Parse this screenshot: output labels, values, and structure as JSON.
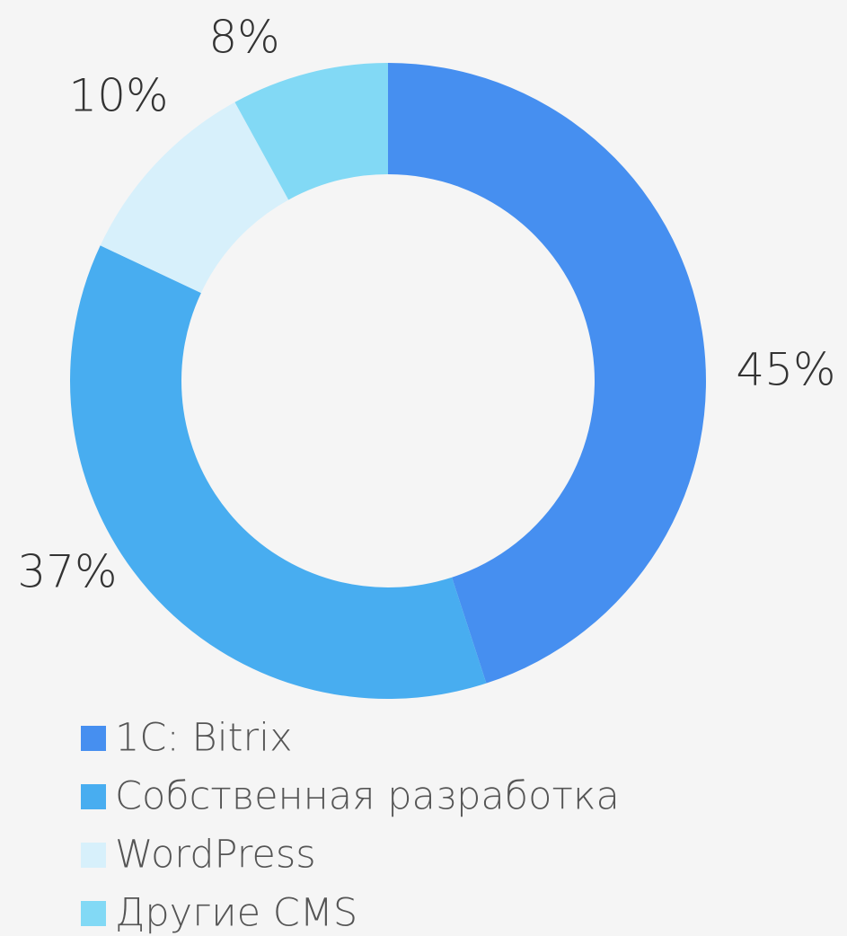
{
  "chart_data": {
    "type": "donut",
    "categories": [
      "1C: Bitrix",
      "Собственная разработка",
      "WordPress",
      "Другие CMS"
    ],
    "values": [
      45,
      37,
      10,
      8
    ],
    "value_labels": [
      "45%",
      "37%",
      "10%",
      "8%"
    ],
    "colors": [
      "#468ff0",
      "#48adf0",
      "#d7f0fb",
      "#82d9f5"
    ],
    "legend": "bottom"
  }
}
